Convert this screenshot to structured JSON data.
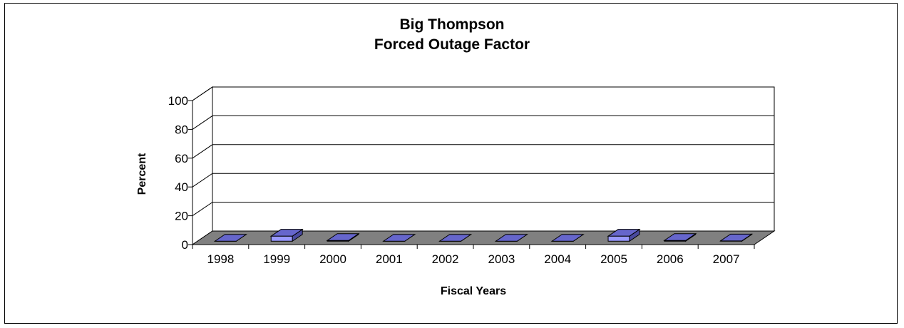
{
  "chart_data": {
    "type": "bar",
    "title": [
      "Big Thompson",
      "Forced Outage Factor"
    ],
    "xlabel": "Fiscal Years",
    "ylabel": "Percent",
    "categories": [
      "1998",
      "1999",
      "2000",
      "2001",
      "2002",
      "2003",
      "2004",
      "2005",
      "2006",
      "2007"
    ],
    "values": [
      0.0,
      3.5,
      0.5,
      0.0,
      0.0,
      0.0,
      0.0,
      3.5,
      0.5,
      0.2
    ],
    "yticks": [
      0,
      20,
      40,
      60,
      80,
      100
    ],
    "ylim": [
      0,
      100
    ],
    "grid": true,
    "three_d": true,
    "colors": {
      "bar_front": "#9999ff",
      "bar_top": "#6666cc",
      "bar_side": "#4a4a9e",
      "floor": "#808080",
      "wall": "#ffffff"
    }
  }
}
